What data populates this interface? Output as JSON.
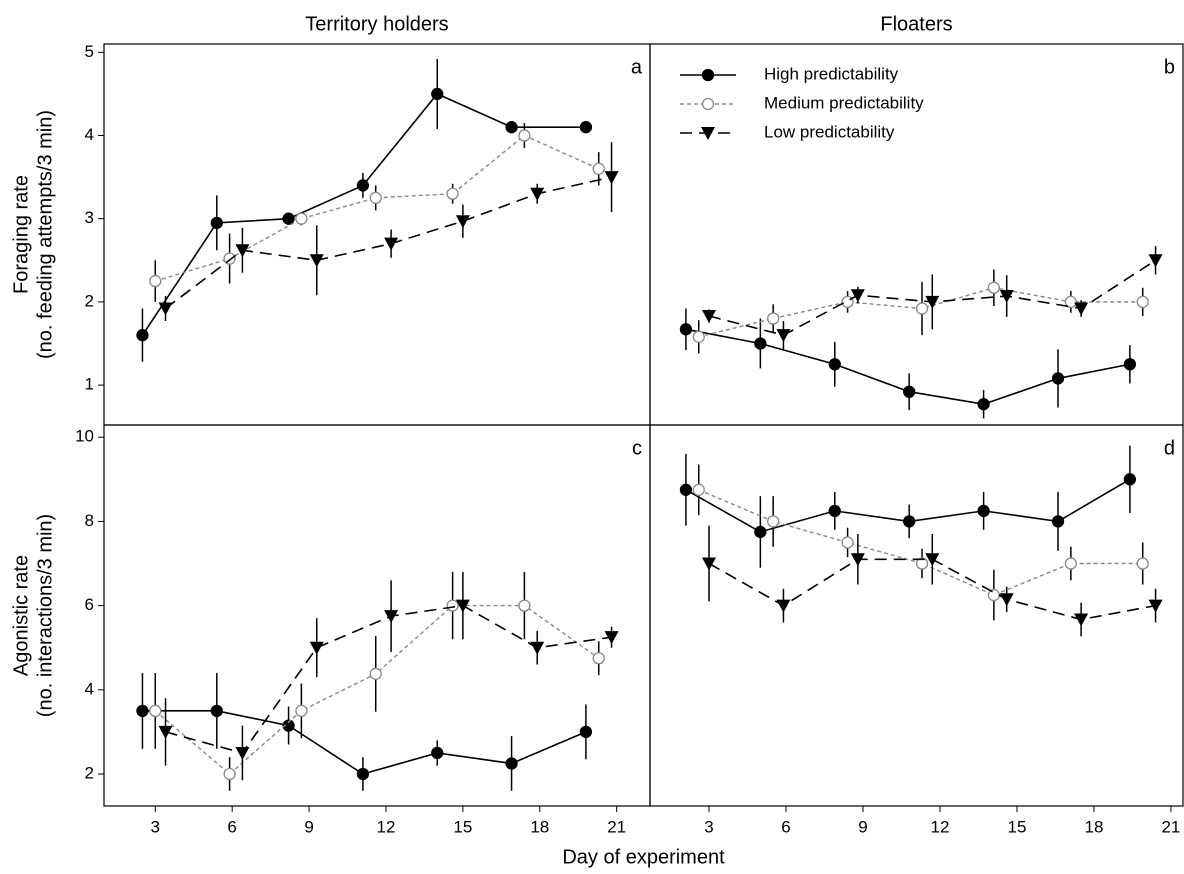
{
  "chart_data": [
    {
      "type": "line",
      "title": "Territory holders",
      "label": "a",
      "ylabel": [
        "Foraging rate",
        "(no. feeding attempts/3 min)"
      ],
      "xlim": [
        1.0,
        22.3
      ],
      "ylim": [
        0.52,
        5.1
      ],
      "yticks": [
        1,
        2,
        3,
        4,
        5
      ],
      "series": [
        {
          "color": "#000000",
          "linestyle": "solid",
          "marker": "filled-circle",
          "x": [
            2.5,
            5.4,
            8.2,
            11.1,
            14.0,
            16.9,
            19.8
          ],
          "values": [
            1.6,
            2.95,
            3.0,
            3.4,
            4.5,
            4.1,
            4.1
          ],
          "errors": [
            0.32,
            0.33,
            0.07,
            0.15,
            0.42,
            0.07,
            0.07
          ]
        },
        {
          "color": "#888888",
          "linestyle": "dotted",
          "marker": "open-circle",
          "x": [
            3.0,
            5.9,
            8.7,
            11.6,
            14.6,
            17.4,
            20.3
          ],
          "values": [
            2.25,
            2.52,
            3.0,
            3.25,
            3.3,
            4.0,
            3.6
          ],
          "errors": [
            0.25,
            0.3,
            0.08,
            0.15,
            0.12,
            0.15,
            0.2
          ]
        },
        {
          "color": "#000000",
          "linestyle": "dashed",
          "marker": "filled-triangle-down",
          "x": [
            3.4,
            6.4,
            9.3,
            12.2,
            15.0,
            17.9,
            20.8
          ],
          "values": [
            1.92,
            2.62,
            2.5,
            2.7,
            2.97,
            3.3,
            3.5
          ],
          "errors": [
            0.15,
            0.27,
            0.42,
            0.17,
            0.2,
            0.12,
            0.42
          ]
        }
      ]
    },
    {
      "type": "line",
      "title": "Floaters",
      "label": "b",
      "legend": "upper left",
      "xlim": [
        0.7,
        21.47
      ],
      "ylim": [
        0.52,
        5.1
      ],
      "series": [
        {
          "name": "High predictability",
          "color": "#000000",
          "linestyle": "solid",
          "marker": "filled-circle",
          "x": [
            2.1,
            5.0,
            7.9,
            10.8,
            13.7,
            16.6,
            19.4
          ],
          "values": [
            1.67,
            1.5,
            1.25,
            0.92,
            0.77,
            1.08,
            1.25
          ],
          "errors": [
            0.25,
            0.3,
            0.27,
            0.22,
            0.17,
            0.35,
            0.23
          ]
        },
        {
          "name": "Medium predictability",
          "color": "#888888",
          "linestyle": "dotted",
          "marker": "open-circle",
          "x": [
            2.6,
            5.5,
            8.4,
            11.3,
            14.1,
            17.1,
            19.9
          ],
          "values": [
            1.58,
            1.8,
            2.0,
            1.92,
            2.17,
            2.0,
            2.0
          ],
          "errors": [
            0.2,
            0.17,
            0.13,
            0.32,
            0.22,
            0.13,
            0.17
          ]
        },
        {
          "name": "Low predictability",
          "color": "#000000",
          "linestyle": "dashed",
          "marker": "filled-triangle-down",
          "x": [
            3.0,
            5.9,
            8.8,
            11.7,
            14.6,
            17.5,
            20.4
          ],
          "values": [
            1.83,
            1.6,
            2.08,
            2.0,
            2.07,
            1.92,
            2.5
          ],
          "errors": [
            0.08,
            0.17,
            0.1,
            0.33,
            0.25,
            0.1,
            0.17
          ]
        }
      ]
    },
    {
      "type": "line",
      "label": "c",
      "xlabel": "Day of experiment",
      "ylabel": [
        "Agonistic rate",
        "(no. interactions/3 min)"
      ],
      "xlim": [
        1.0,
        22.3
      ],
      "ylim": [
        1.24,
        10.29
      ],
      "yticks": [
        2,
        4,
        6,
        8,
        10
      ],
      "xticks": [
        3,
        6,
        9,
        12,
        15,
        18,
        21
      ],
      "series": [
        {
          "color": "#000000",
          "linestyle": "solid",
          "marker": "filled-circle",
          "x": [
            2.5,
            5.4,
            8.2,
            11.1,
            14.0,
            16.9,
            19.8
          ],
          "values": [
            3.5,
            3.5,
            3.15,
            2.0,
            2.5,
            2.25,
            3.0
          ],
          "errors": [
            0.9,
            0.9,
            0.45,
            0.4,
            0.3,
            0.65,
            0.65
          ]
        },
        {
          "color": "#888888",
          "linestyle": "dotted",
          "marker": "open-circle",
          "x": [
            3.0,
            5.9,
            8.7,
            11.6,
            14.6,
            17.4,
            20.3
          ],
          "values": [
            3.5,
            2.0,
            3.5,
            4.38,
            6.0,
            6.0,
            4.75
          ],
          "errors": [
            0.9,
            0.4,
            0.65,
            0.9,
            0.8,
            0.8,
            0.4
          ]
        },
        {
          "color": "#000000",
          "linestyle": "dashed",
          "marker": "filled-triangle-down",
          "x": [
            3.4,
            6.4,
            9.3,
            12.2,
            15.0,
            17.9,
            20.8
          ],
          "values": [
            3.0,
            2.5,
            5.0,
            5.75,
            6.0,
            5.0,
            5.25
          ],
          "errors": [
            0.8,
            0.65,
            0.7,
            0.85,
            0.8,
            0.4,
            0.25
          ]
        }
      ]
    },
    {
      "type": "line",
      "label": "d",
      "xlim": [
        0.7,
        21.47
      ],
      "ylim": [
        1.24,
        10.29
      ],
      "xticks": [
        3,
        6,
        9,
        12,
        15,
        18,
        21
      ],
      "series": [
        {
          "color": "#000000",
          "linestyle": "solid",
          "marker": "filled-circle",
          "x": [
            2.1,
            5.0,
            7.9,
            10.8,
            13.7,
            16.6,
            19.4
          ],
          "values": [
            8.75,
            7.75,
            8.25,
            8.0,
            8.25,
            8.0,
            9.0
          ],
          "errors": [
            0.85,
            0.85,
            0.45,
            0.4,
            0.45,
            0.7,
            0.8
          ]
        },
        {
          "color": "#888888",
          "linestyle": "dotted",
          "marker": "open-circle",
          "x": [
            2.6,
            5.5,
            8.4,
            11.3,
            14.1,
            17.1,
            19.9
          ],
          "values": [
            8.75,
            8.0,
            7.5,
            7.0,
            6.25,
            7.0,
            7.0
          ],
          "errors": [
            0.6,
            0.6,
            0.35,
            0.35,
            0.6,
            0.4,
            0.5
          ]
        },
        {
          "color": "#000000",
          "linestyle": "dashed",
          "marker": "filled-triangle-down",
          "x": [
            3.0,
            5.9,
            8.8,
            11.7,
            14.6,
            17.5,
            20.4
          ],
          "values": [
            7.0,
            6.0,
            7.1,
            7.1,
            6.15,
            5.67,
            6.0
          ],
          "errors": [
            0.9,
            0.4,
            0.6,
            0.6,
            0.3,
            0.4,
            0.4
          ]
        }
      ]
    }
  ]
}
